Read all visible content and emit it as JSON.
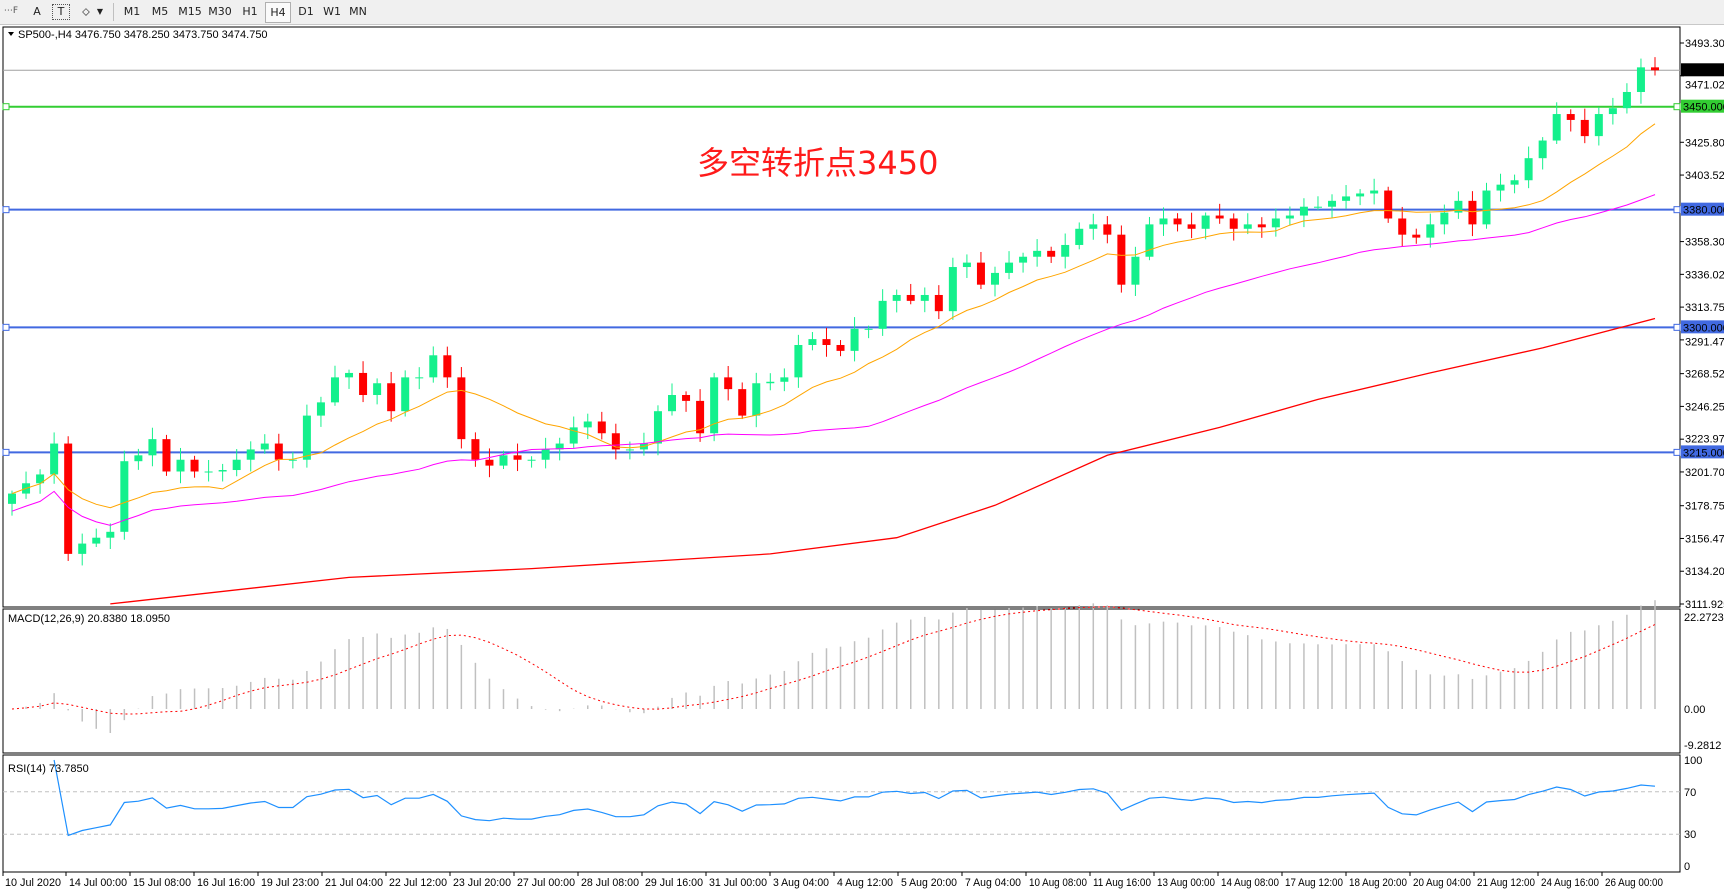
{
  "toolbar": {
    "tools": [
      {
        "name": "fibonacci-fan-tool",
        "glyph": "⋯F"
      },
      {
        "name": "text-tool",
        "glyph": "A"
      },
      {
        "name": "text-label-tool",
        "glyph": "T"
      },
      {
        "name": "arrows-tool",
        "glyph": "⬦"
      }
    ],
    "timeframes": [
      "M1",
      "M5",
      "M15",
      "M30",
      "H1",
      "H4",
      "D1",
      "W1",
      "MN"
    ],
    "active_timeframe": "H4"
  },
  "chart": {
    "legend": "SP500-,H4  3476.750 3478.250 3473.750 3474.750",
    "annotation": "多空转折点3450",
    "price_ticks": [
      "3493.300",
      "3471.025",
      "3425.800",
      "3403.525",
      "3358.300",
      "3336.025",
      "3313.750",
      "3291.475",
      "3268.525",
      "3246.250",
      "3223.975",
      "3201.700",
      "3178.750",
      "3156.475",
      "3134.200",
      "3111.925"
    ],
    "current_price": {
      "value": 3474.75,
      "label": "3474.750"
    },
    "hlines": [
      {
        "value": 3450,
        "label": "3450.000",
        "color": "#32cd32"
      },
      {
        "value": 3380,
        "label": "3380.000",
        "color": "#4169e1"
      },
      {
        "value": 3300,
        "label": "3300.000",
        "color": "#4169e1"
      },
      {
        "value": 3215,
        "label": "3215.000",
        "color": "#4169e1"
      }
    ],
    "colors": {
      "bull": "#14f08c",
      "bear": "#ff0000",
      "ma_fast": "#ffa500",
      "ma_mid": "#ff00ff",
      "ma_slow": "#ff0000",
      "macd_hist": "#c0c0c0",
      "macd_signal": "#ff0000",
      "rsi": "#1e90ff"
    },
    "closes": [
      3187,
      3194,
      3200,
      3221,
      3146,
      3153,
      3157,
      3161,
      3209,
      3213,
      3224,
      3202,
      3210,
      3202,
      3202,
      3203,
      3210,
      3217,
      3221,
      3210,
      3210,
      3240,
      3249,
      3266,
      3269,
      3254,
      3262,
      3243,
      3266,
      3266,
      3281,
      3266,
      3224,
      3210,
      3206,
      3213,
      3210,
      3210,
      3217,
      3221,
      3232,
      3236,
      3228,
      3217,
      3217,
      3221,
      3243,
      3254,
      3250,
      3228,
      3266,
      3258,
      3240,
      3262,
      3263,
      3266,
      3288,
      3292,
      3288,
      3284,
      3299,
      3299,
      3318,
      3322,
      3318,
      3322,
      3311,
      3341,
      3344,
      3329,
      3337,
      3344,
      3348,
      3352,
      3348,
      3356,
      3367,
      3370,
      3363,
      3329,
      3348,
      3370,
      3374,
      3370,
      3367,
      3376,
      3374,
      3367,
      3370,
      3368,
      3374,
      3376,
      3382,
      3382,
      3386,
      3389,
      3391,
      3393,
      3374,
      3363,
      3361,
      3370,
      3378,
      3386,
      3370,
      3393,
      3397,
      3400,
      3415,
      3427,
      3445,
      3441,
      3430,
      3445,
      3449,
      3460,
      3476.75,
      3474.75
    ],
    "slow_ma_points": [
      [
        7,
        3112
      ],
      [
        24,
        3130
      ],
      [
        37,
        3136
      ],
      [
        54,
        3146
      ],
      [
        63,
        3157
      ],
      [
        70,
        3179
      ],
      [
        78,
        3213
      ],
      [
        86,
        3232
      ],
      [
        93,
        3251
      ],
      [
        101,
        3269
      ],
      [
        109,
        3286
      ],
      [
        117,
        3306
      ]
    ],
    "price_range": [
      3111.925,
      3493.3
    ]
  },
  "macd": {
    "label": "MACD(12,26,9) 20.8380 18.0950",
    "ticks": [
      "22.2723",
      "0.00",
      "-9.2812"
    ],
    "range": [
      -9.2812,
      22.2723
    ]
  },
  "rsi": {
    "label": "RSI(14) 73.7850",
    "ticks": [
      "100",
      "70",
      "30",
      "0"
    ],
    "levels": [
      70,
      30
    ]
  },
  "time_labels": [
    "10 Jul 2020",
    "14 Jul 00:00",
    "15 Jul 08:00",
    "16 Jul 16:00",
    "19 Jul 23:00",
    "21 Jul 04:00",
    "22 Jul 12:00",
    "23 Jul 20:00",
    "27 Jul 00:00",
    "28 Jul 08:00",
    "29 Jul 16:00",
    "31 Jul 00:00",
    "3 Aug 04:00",
    "4 Aug 12:00",
    "5 Aug 20:00",
    "7 Aug 04:00",
    "10 Aug 08:00",
    "11 Aug 16:00",
    "13 Aug 00:00",
    "14 Aug 08:00",
    "17 Aug 12:00",
    "18 Aug 20:00",
    "20 Aug 04:00",
    "21 Aug 12:00",
    "24 Aug 16:00",
    "26 Aug 00:00"
  ]
}
